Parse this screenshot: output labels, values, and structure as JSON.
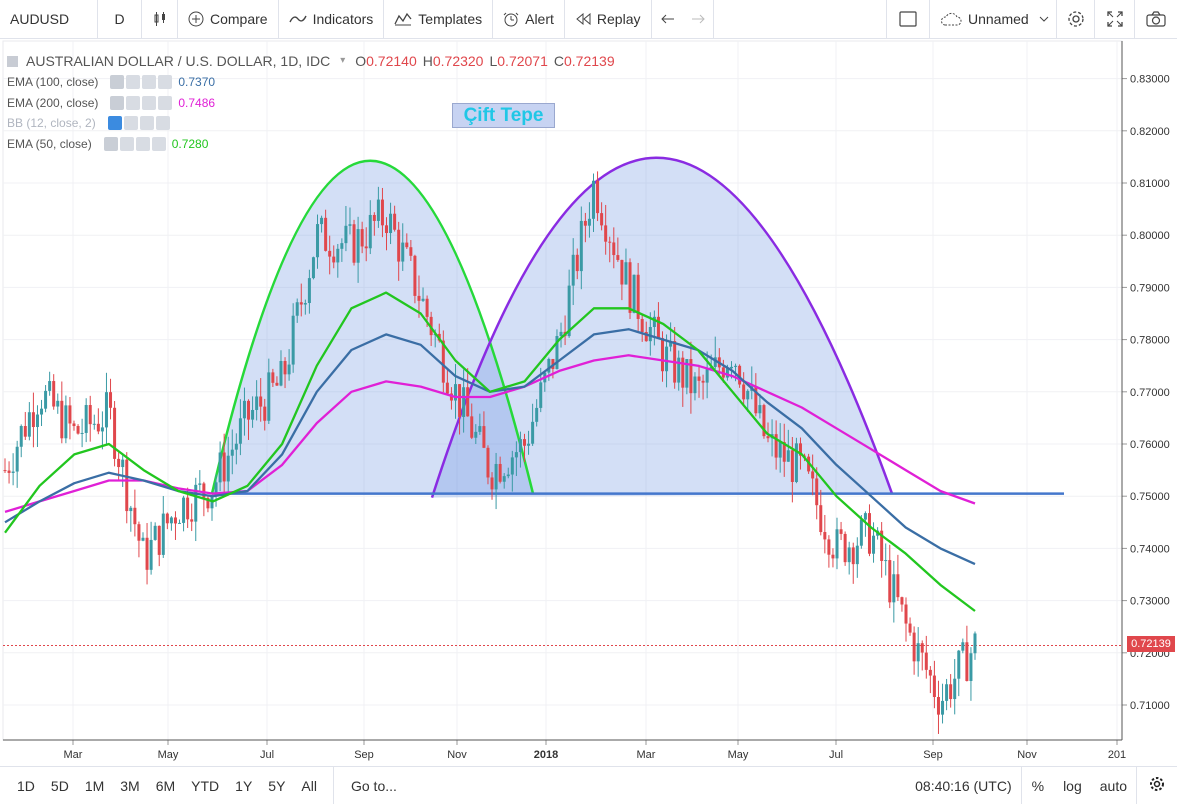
{
  "toolbar": {
    "symbol": "AUDUSD",
    "interval": "D",
    "compare_label": "Compare",
    "indicators_label": "Indicators",
    "templates_label": "Templates",
    "alert_label": "Alert",
    "replay_label": "Replay",
    "layout_name": "Unnamed",
    "icons": [
      "candles-icon",
      "plus-circle-icon",
      "indicators-icon",
      "templates-icon",
      "alert-icon",
      "replay-icon",
      "undo-icon",
      "redo-icon",
      "rectangle-icon",
      "cloud-icon",
      "chevron-down-icon",
      "gear-icon",
      "fullscreen-icon",
      "camera-icon"
    ]
  },
  "legend": {
    "title": "AUSTRALIAN DOLLAR / U.S. DOLLAR, 1D, IDC",
    "ohlc": {
      "o_label": "O",
      "o": "0.72140",
      "h_label": "H",
      "h": "0.72320",
      "l_label": "L",
      "l": "0.72071",
      "c_label": "C",
      "c": "0.72139"
    },
    "indicators": [
      {
        "name": "EMA (100, close)",
        "value": "0.7370",
        "color": "#3a6ea5"
      },
      {
        "name": "EMA (200, close)",
        "value": "0.7486",
        "color": "#e020d6"
      },
      {
        "name": "BB (12, close, 2)",
        "value": "",
        "color": "#9aa8cf"
      },
      {
        "name": "EMA (50, close)",
        "value": "0.7280",
        "color": "#22c61f"
      }
    ]
  },
  "annotation": {
    "text": "Çift Tepe"
  },
  "price_tag": "0.72139",
  "chart_data": {
    "type": "line",
    "title": "AUSTRALIAN DOLLAR / U.S. DOLLAR, 1D, IDC",
    "xlabel": "",
    "ylabel": "",
    "ylim": [
      0.7025,
      0.8375
    ],
    "y_ticks": [
      "0.83000",
      "0.82000",
      "0.81000",
      "0.80000",
      "0.79000",
      "0.78000",
      "0.77000",
      "0.76000",
      "0.75000",
      "0.74000",
      "0.73000",
      "0.72000",
      "0.71000"
    ],
    "x_ticks": [
      "Mar",
      "May",
      "Jul",
      "Sep",
      "Nov",
      "2018",
      "Mar",
      "May",
      "Jul",
      "Sep",
      "Nov",
      "201"
    ],
    "grid": true,
    "series": [
      {
        "name": "EMA (50, close)",
        "color": "#22c61f",
        "values": [
          0.743,
          0.752,
          0.758,
          0.76,
          0.755,
          0.751,
          0.749,
          0.752,
          0.76,
          0.775,
          0.786,
          0.789,
          0.785,
          0.776,
          0.77,
          0.772,
          0.78,
          0.786,
          0.786,
          0.783,
          0.778,
          0.77,
          0.762,
          0.758,
          0.75,
          0.744,
          0.739,
          0.733,
          0.728
        ]
      },
      {
        "name": "EMA (100, close)",
        "color": "#3a6ea5",
        "values": [
          0.745,
          0.749,
          0.7525,
          0.7545,
          0.753,
          0.751,
          0.75,
          0.751,
          0.758,
          0.77,
          0.778,
          0.781,
          0.779,
          0.773,
          0.77,
          0.771,
          0.776,
          0.781,
          0.782,
          0.78,
          0.778,
          0.774,
          0.768,
          0.763,
          0.756,
          0.75,
          0.744,
          0.74,
          0.737
        ]
      },
      {
        "name": "EMA (200, close)",
        "color": "#e020d6",
        "values": [
          0.747,
          0.749,
          0.751,
          0.753,
          0.753,
          0.7515,
          0.7505,
          0.751,
          0.756,
          0.764,
          0.77,
          0.772,
          0.771,
          0.769,
          0.769,
          0.771,
          0.774,
          0.776,
          0.777,
          0.776,
          0.775,
          0.773,
          0.77,
          0.767,
          0.763,
          0.759,
          0.755,
          0.751,
          0.7486
        ]
      },
      {
        "name": "AUDUSD",
        "color": "#e0474c",
        "values": [
          0.755,
          0.77,
          0.762,
          0.766,
          0.738,
          0.748,
          0.752,
          0.765,
          0.772,
          0.8,
          0.798,
          0.804,
          0.788,
          0.77,
          0.755,
          0.76,
          0.78,
          0.81,
          0.79,
          0.777,
          0.77,
          0.778,
          0.76,
          0.755,
          0.74,
          0.743,
          0.725,
          0.711,
          0.7214
        ]
      }
    ],
    "annotations": [
      "Çift Tepe"
    ],
    "neckline": 0.7505,
    "last_price": 0.72139
  },
  "bottombar": {
    "ranges": [
      "1D",
      "5D",
      "1M",
      "3M",
      "6M",
      "YTD",
      "1Y",
      "5Y",
      "All"
    ],
    "goto_label": "Go to...",
    "time": "08:40:16 (UTC)",
    "percent_label": "%",
    "log_label": "log",
    "auto_label": "auto"
  }
}
